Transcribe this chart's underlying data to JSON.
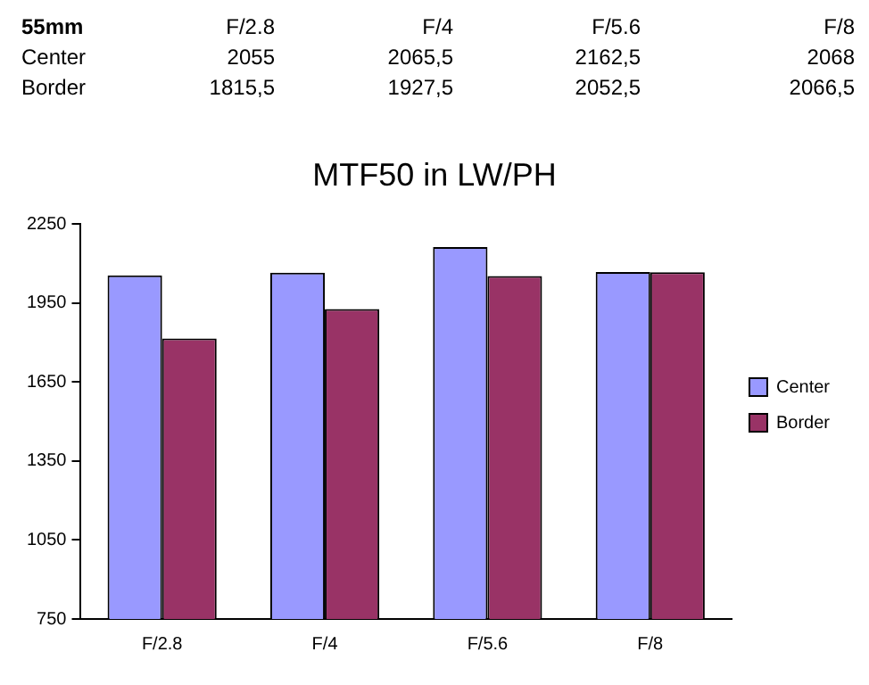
{
  "chart_data": {
    "type": "bar",
    "title": "MTF50 in LW/PH",
    "annotations": [
      "55mm",
      "2055",
      "2065,5",
      "2162,5",
      "2068",
      "1815,5",
      "1927,5",
      "2052,5",
      "2066,5"
    ],
    "categories": [
      "F/2.8",
      "F/4",
      "F/5.6",
      "F/8"
    ],
    "series": [
      {
        "name": "Center",
        "color": "#9999ff",
        "values": [
          2055,
          2065.5,
          2162.5,
          2068
        ]
      },
      {
        "name": "Border",
        "color": "#993366",
        "values": [
          1815.5,
          1927.5,
          2052.5,
          2066.5
        ]
      }
    ],
    "ylim": [
      750,
      2250
    ],
    "yticks": [
      750,
      1050,
      1350,
      1650,
      1950,
      2250
    ],
    "grid": false,
    "legend": "right"
  }
}
